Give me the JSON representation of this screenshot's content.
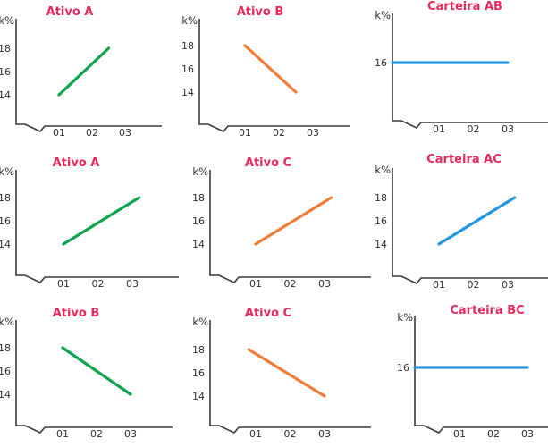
{
  "page": {
    "background": "#ffffff",
    "description": "Grid of nine mini line charts comparing asset returns (Ativo A, B, C) with combined portfolio returns (Carteira AB, AC, BC) over periods 01-03"
  },
  "colors": {
    "title_text": "#e62a5c",
    "axis": "#3b3b3b",
    "tick_text": "#2f2f2f",
    "line_green": "#10a24c",
    "line_orange": "#ef7d3a",
    "line_blue": "#2496e1"
  },
  "chart_data": [
    {
      "type": "line",
      "title": "Ativo A",
      "ylabel": "k%",
      "xlabel": "",
      "yticks": [
        "18",
        "16",
        "14"
      ],
      "xticks": [
        "01",
        "02",
        "03"
      ],
      "ylim": [
        12,
        19
      ],
      "axis_break": true,
      "grid": false,
      "legend": false,
      "series": [
        {
          "name": "Ativo A",
          "color": "#10a24c",
          "color_name": "green",
          "points": [
            [
              1,
              14
            ],
            [
              2.5,
              18
            ]
          ]
        }
      ]
    },
    {
      "type": "line",
      "title": "Ativo B",
      "ylabel": "k%",
      "xlabel": "",
      "yticks": [
        "18",
        "16",
        "14"
      ],
      "xticks": [
        "01",
        "02",
        "03"
      ],
      "ylim": [
        12,
        19
      ],
      "axis_break": true,
      "grid": false,
      "legend": false,
      "series": [
        {
          "name": "Ativo B",
          "color": "#ef7d3a",
          "color_name": "orange",
          "points": [
            [
              1,
              18
            ],
            [
              2.5,
              14
            ]
          ]
        }
      ]
    },
    {
      "type": "line",
      "title": "Carteira AB",
      "ylabel": "k%",
      "xlabel": "",
      "yticks": [
        "16"
      ],
      "xticks": [
        "01",
        "02",
        "03"
      ],
      "ylim": [
        12,
        19
      ],
      "axis_break": true,
      "grid": false,
      "legend": false,
      "series": [
        {
          "name": "Carteira AB",
          "color": "#2496e1",
          "color_name": "blue",
          "points": [
            [
              0,
              16
            ],
            [
              3,
              16
            ]
          ]
        }
      ]
    },
    {
      "type": "line",
      "title": "Ativo A",
      "ylabel": "k%",
      "xlabel": "",
      "yticks": [
        "18",
        "16",
        "14"
      ],
      "xticks": [
        "01",
        "02",
        "03"
      ],
      "ylim": [
        12,
        19
      ],
      "axis_break": true,
      "grid": false,
      "legend": false,
      "series": [
        {
          "name": "Ativo A",
          "color": "#10a24c",
          "color_name": "green",
          "points": [
            [
              1,
              14
            ],
            [
              3.2,
              18
            ]
          ]
        }
      ]
    },
    {
      "type": "line",
      "title": "Ativo C",
      "ylabel": "k%",
      "xlabel": "",
      "yticks": [
        "18",
        "16",
        "14"
      ],
      "xticks": [
        "01",
        "02",
        "03"
      ],
      "ylim": [
        12,
        19
      ],
      "axis_break": true,
      "grid": false,
      "legend": false,
      "series": [
        {
          "name": "Ativo C",
          "color": "#ef7d3a",
          "color_name": "orange",
          "points": [
            [
              1,
              14
            ],
            [
              3.2,
              18
            ]
          ]
        }
      ]
    },
    {
      "type": "line",
      "title": "Carteira AC",
      "ylabel": "k%",
      "xlabel": "",
      "yticks": [
        "18",
        "16",
        "14"
      ],
      "xticks": [
        "01",
        "02",
        "03"
      ],
      "ylim": [
        12,
        19
      ],
      "axis_break": true,
      "grid": false,
      "legend": false,
      "series": [
        {
          "name": "Carteira AC",
          "color": "#2496e1",
          "color_name": "blue",
          "points": [
            [
              1,
              14
            ],
            [
              3.2,
              18
            ]
          ]
        }
      ]
    },
    {
      "type": "line",
      "title": "Ativo B",
      "ylabel": "k%",
      "xlabel": "",
      "yticks": [
        "18",
        "16",
        "14"
      ],
      "xticks": [
        "01",
        "02",
        "03"
      ],
      "ylim": [
        12,
        19
      ],
      "axis_break": true,
      "grid": false,
      "legend": false,
      "series": [
        {
          "name": "Ativo B",
          "color": "#10a24c",
          "color_name": "green",
          "points": [
            [
              1,
              18
            ],
            [
              3,
              14
            ]
          ]
        }
      ]
    },
    {
      "type": "line",
      "title": "Ativo C",
      "ylabel": "k%",
      "xlabel": "",
      "yticks": [
        "18",
        "16",
        "14"
      ],
      "xticks": [
        "01",
        "02",
        "03"
      ],
      "ylim": [
        12,
        19
      ],
      "axis_break": true,
      "grid": false,
      "legend": false,
      "series": [
        {
          "name": "Ativo C",
          "color": "#ef7d3a",
          "color_name": "orange",
          "points": [
            [
              0.8,
              18
            ],
            [
              3,
              14
            ]
          ]
        }
      ]
    },
    {
      "type": "line",
      "title": "Carteira BC",
      "ylabel": "k%",
      "xlabel": "",
      "yticks": [
        "16"
      ],
      "xticks": [
        "01",
        "02",
        "03"
      ],
      "ylim": [
        12,
        19
      ],
      "axis_break": true,
      "grid": false,
      "legend": false,
      "series": [
        {
          "name": "Carteira BC",
          "color": "#2496e1",
          "color_name": "blue",
          "points": [
            [
              0,
              16
            ],
            [
              3,
              16
            ]
          ]
        }
      ]
    }
  ]
}
